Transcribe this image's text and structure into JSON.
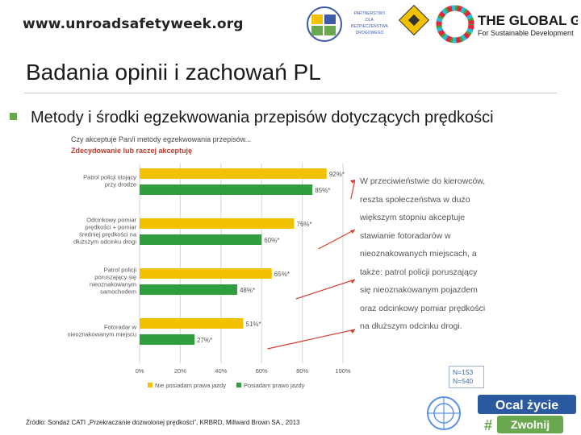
{
  "header": {
    "url": "www.unroadsafetyweek.org",
    "partner_text": [
      "PARTNERSTWO",
      "DLA",
      "BEZPIECZEŃSTWA",
      "DROGOWEGO"
    ],
    "global_goals_title": "THE GLOBAL GOALS",
    "global_goals_sub": "For Sustainable Development"
  },
  "slide": {
    "title": "Badania opinii i zachowań PL",
    "subtitle": "Metody i środki egzekwowania przepisów dotyczących prędkości"
  },
  "note": {
    "lines": [
      "W przeciwieństwie do kierowców,",
      "reszta społeczeństwa w dużo",
      "większym stopniu akceptuje",
      "stawianie fotoradarów w",
      "nieoznakowanych miejscach, a",
      "także: patrol policji poruszający",
      "się nieoznakowanym pojazdem",
      "oraz odcinkowy pomiar prędkości",
      "na dłuższym odcinku drogi."
    ]
  },
  "sample": {
    "line1": "N=153",
    "line2": "N=540"
  },
  "source": "Źródło: Sondaż CATI „Przekraczanie dozwolonej prędkości”, KRBRD, Millward Brown SA., 2013",
  "campaign": {
    "line1": "Ocal życie",
    "hash": "#",
    "line2": "Zwolnij"
  },
  "chart_data": {
    "type": "bar",
    "orientation": "horizontal",
    "question": "Czy akceptuje Pan/i metody egzekwowania przepisów...",
    "filter_label": "Zdecydowanie lub raczej akceptuję",
    "categories": [
      "Patrol policji stojący przy drodze",
      "Odcinkowy pomiar prędkości + pomiar średniej prędkości na dłuższym odcinku drogi",
      "Patrol policji poruszający się nieoznakowanym samochodem",
      "Fotoradar w nieoznakowanym miejscu"
    ],
    "series": [
      {
        "name": "Nie posiadam prawa jazdy",
        "values": [
          92,
          76,
          65,
          51
        ],
        "labels": [
          "92%*",
          "76%*",
          "65%*",
          "51%*"
        ],
        "color": "#f2c200"
      },
      {
        "name": "Posiadam prawo jazdy",
        "values": [
          85,
          60,
          48,
          27
        ],
        "labels": [
          "85%*",
          "60%*",
          "48%*",
          "27%*"
        ],
        "color": "#2e9e3e"
      }
    ],
    "xlim": [
      0,
      100
    ],
    "xticks": [
      "0%",
      "20%",
      "40%",
      "60%",
      "80%",
      "100%"
    ],
    "legend_position": "bottom",
    "grid": true
  }
}
